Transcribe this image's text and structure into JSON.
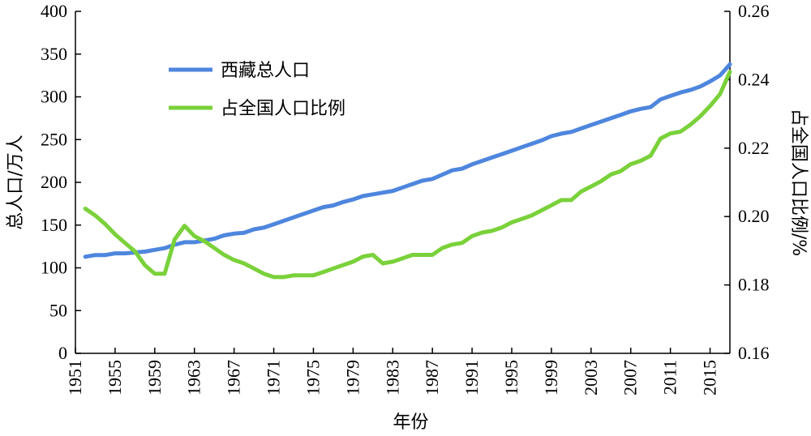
{
  "chart_data": {
    "type": "line",
    "xlabel": "年份",
    "ylabel_left": "总人口/万人",
    "ylabel_right": "占全国人口比例/%",
    "xlim": [
      1951,
      2017
    ],
    "ylim_left": [
      0,
      400
    ],
    "ylim_right": [
      0.16,
      0.26
    ],
    "x_ticks": [
      "1951",
      "1955",
      "1959",
      "1963",
      "1967",
      "1971",
      "1975",
      "1979",
      "1983",
      "1987",
      "1991",
      "1995",
      "1999",
      "2003",
      "2007",
      "2011",
      "2015"
    ],
    "y_ticks_left": [
      "0",
      "50",
      "100",
      "150",
      "200",
      "250",
      "300",
      "350",
      "400"
    ],
    "y_ticks_right": [
      "0.16",
      "0.18",
      "0.20",
      "0.22",
      "0.24",
      "0.26"
    ],
    "legend_position": "top-left",
    "grid": false,
    "colors": {
      "population": "#4e86de",
      "share": "#7ad13a"
    },
    "x": [
      1952,
      1953,
      1954,
      1955,
      1956,
      1957,
      1958,
      1959,
      1960,
      1961,
      1962,
      1963,
      1964,
      1965,
      1966,
      1967,
      1968,
      1969,
      1970,
      1971,
      1972,
      1973,
      1974,
      1975,
      1976,
      1977,
      1978,
      1979,
      1980,
      1981,
      1982,
      1983,
      1984,
      1985,
      1986,
      1987,
      1988,
      1989,
      1990,
      1991,
      1992,
      1993,
      1994,
      1995,
      1996,
      1997,
      1998,
      1999,
      2000,
      2001,
      2002,
      2003,
      2004,
      2005,
      2006,
      2007,
      2008,
      2009,
      2010,
      2011,
      2012,
      2013,
      2014,
      2015,
      2016,
      2017
    ],
    "series": [
      {
        "name": "西藏总人口",
        "axis": "left",
        "values": [
          113,
          115,
          115,
          117,
          117,
          118,
          119,
          121,
          123,
          127,
          130,
          130,
          132,
          134,
          138,
          140,
          141,
          145,
          147,
          151,
          155,
          159,
          163,
          167,
          171,
          173,
          177,
          180,
          184,
          186,
          188,
          190,
          194,
          198,
          202,
          204,
          209,
          214,
          216,
          221,
          225,
          229,
          233,
          237,
          241,
          245,
          249,
          254,
          257,
          259,
          263,
          267,
          271,
          275,
          279,
          283,
          286,
          288,
          297,
          301,
          305,
          308,
          312,
          318,
          325,
          338
        ]
      },
      {
        "name": "占全国人口比例",
        "axis": "right",
        "values": [
          0.2023,
          0.2003,
          0.1978,
          0.1948,
          0.1923,
          0.1898,
          0.1858,
          0.1833,
          0.1833,
          0.1933,
          0.1973,
          0.1943,
          0.1928,
          0.1908,
          0.1888,
          0.1873,
          0.1863,
          0.1848,
          0.1833,
          0.1823,
          0.1823,
          0.1828,
          0.1828,
          0.1828,
          0.1838,
          0.1848,
          0.1858,
          0.1868,
          0.1883,
          0.1888,
          0.1863,
          0.1868,
          0.1878,
          0.1888,
          0.1888,
          0.1888,
          0.1908,
          0.1918,
          0.1923,
          0.1943,
          0.1953,
          0.1958,
          0.1968,
          0.1983,
          0.1993,
          0.2003,
          0.2018,
          0.2033,
          0.2048,
          0.2048,
          0.2073,
          0.2088,
          0.2103,
          0.2123,
          0.2133,
          0.2153,
          0.2163,
          0.2178,
          0.2228,
          0.2243,
          0.2248,
          0.2268,
          0.2293,
          0.2323,
          0.2358,
          0.2423
        ]
      }
    ]
  }
}
